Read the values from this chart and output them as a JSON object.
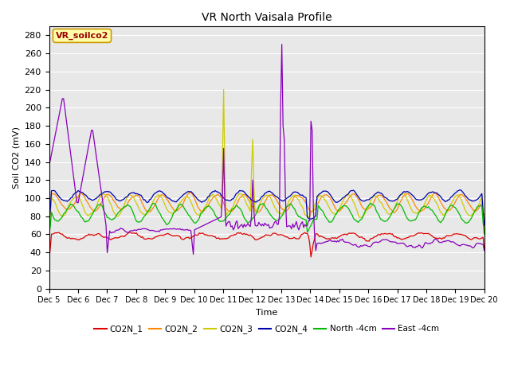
{
  "title": "VR North Vaisala Profile",
  "ylabel": "Soil CO2 (mV)",
  "xlabel": "Time",
  "ylim": [
    0,
    290
  ],
  "yticks": [
    0,
    20,
    40,
    60,
    80,
    100,
    120,
    140,
    160,
    180,
    200,
    220,
    240,
    260,
    280
  ],
  "background_color": "#e8e8e8",
  "annotation_text": "VR_soilco2",
  "annotation_box_color": "#ffffaa",
  "annotation_text_color": "#990000",
  "annotation_border_color": "#cc9900",
  "series_colors": {
    "CO2N_1": "#dd0000",
    "CO2N_2": "#ff8800",
    "CO2N_3": "#cccc00",
    "CO2N_4": "#0000aa",
    "North_4cm": "#00bb00",
    "East_4cm": "#8800bb"
  },
  "legend_labels": [
    "CO2N_1",
    "CO2N_2",
    "CO2N_3",
    "CO2N_4",
    "North -4cm",
    "East -4cm"
  ],
  "n_points": 360,
  "x_start": 5,
  "x_end": 20,
  "xtick_positions": [
    5,
    6,
    7,
    8,
    9,
    10,
    11,
    12,
    13,
    14,
    15,
    16,
    17,
    18,
    19,
    20
  ],
  "xtick_labels": [
    "Dec 5",
    "Dec 6",
    "Dec 7",
    "Dec 8",
    "Dec 9",
    "Dec 10",
    "Dec 11",
    "Dec 12",
    "Dec 13",
    "Dec 14",
    "Dec 15",
    "Dec 16",
    "Dec 17",
    "Dec 18",
    "Dec 19",
    "Dec 20"
  ]
}
